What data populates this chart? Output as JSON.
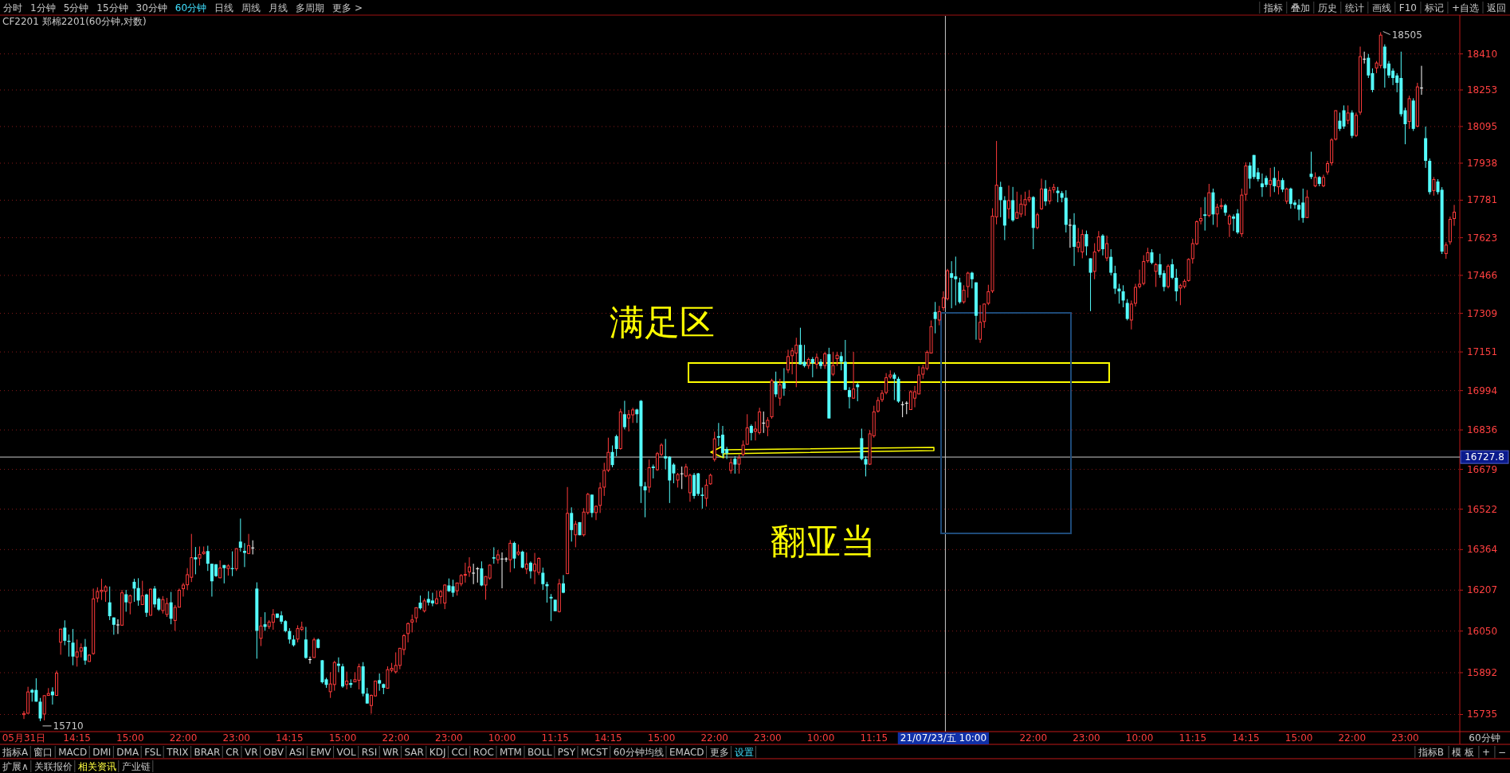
{
  "chart_data": {
    "type": "candlestick",
    "title": "CF2201 郑棉2201(60分钟,对数)",
    "log": true,
    "grid": "y",
    "ylim": [
      15674,
      18577
    ],
    "yticks": [
      15735,
      15892,
      16050,
      16207,
      16364,
      16522,
      16679,
      16836,
      16994,
      17151,
      17309,
      17466,
      17623,
      17781,
      17938,
      18095,
      18253,
      18410
    ],
    "ref_lines": [
      {
        "axis": "y",
        "value": 16727.8,
        "label": "16727.8",
        "color": "#c8c8c8"
      },
      {
        "axis": "x",
        "value": "21/07/23/五 10:00",
        "color": "#c8c8c8"
      }
    ],
    "annotations": [
      "满足区",
      "翻亚当",
      "15710",
      "18505",
      "分时",
      "1分钟",
      "5分钟",
      "15分钟",
      "30分钟",
      "60分钟",
      "日线",
      "周线",
      "月线",
      "多周期",
      "更多 >",
      "指标",
      "叠加",
      "历史",
      "统计",
      "画线",
      "F10",
      "标记",
      "+自选",
      "返回",
      "指标A",
      "窗口",
      "MACD",
      "DMI",
      "DMA",
      "FSL",
      "TRIX",
      "BRAR",
      "CR",
      "VR",
      "OBV",
      "ASI",
      "EMV",
      "VOL",
      "RSI",
      "WR",
      "SAR",
      "KDJ",
      "CCI",
      "ROC",
      "MTM",
      "BOLL",
      "PSY",
      "MCST",
      "60分钟均线",
      "EMACD",
      "更多",
      "设置",
      "指标B",
      "模 板",
      "+",
      "−",
      "扩展∧",
      "关联报价",
      "相关资讯",
      "产业链",
      "60分钟"
    ],
    "categories": [
      "05月31日",
      null,
      null,
      null,
      null,
      null,
      null,
      null,
      null,
      null,
      null,
      null,
      null,
      "14:15",
      null,
      null,
      null,
      null,
      null,
      null,
      null,
      null,
      null,
      null,
      null,
      null,
      "15:00",
      null,
      null,
      null,
      null,
      null,
      null,
      null,
      null,
      null,
      null,
      null,
      null,
      "22:00",
      null,
      null,
      null,
      null,
      null,
      null,
      null,
      null,
      null,
      null,
      null,
      null,
      "23:00",
      null,
      null,
      null,
      null,
      null,
      null,
      null,
      null,
      null,
      null,
      null,
      null,
      "14:15",
      null,
      null,
      null,
      null,
      null,
      null,
      null,
      null,
      null,
      null,
      null,
      null,
      "15:00",
      null,
      null,
      null,
      null,
      null,
      null,
      null,
      null,
      null,
      null,
      null,
      null,
      "22:00",
      null,
      null,
      null,
      null,
      null,
      null,
      null,
      null,
      null,
      null,
      null,
      null,
      "23:00",
      null,
      null,
      null,
      null,
      null,
      null,
      null,
      null,
      null,
      null,
      null,
      null,
      "10:00",
      null,
      null,
      null,
      null,
      null,
      null,
      null,
      null,
      null,
      null,
      null,
      null,
      "11:15",
      null,
      null,
      null,
      null,
      null,
      null,
      null,
      null,
      null,
      null,
      null,
      null,
      "14:15",
      null,
      null,
      null,
      null,
      null,
      null,
      null,
      null,
      null,
      null,
      null,
      null,
      "15:00",
      null,
      null,
      null,
      null,
      null,
      null,
      null,
      null,
      null,
      null,
      null,
      null,
      "22:00",
      null,
      null,
      null,
      null,
      null,
      null,
      null,
      null,
      null,
      null,
      null,
      null,
      "23:00",
      null,
      null,
      null,
      null,
      null,
      null,
      null,
      null,
      null,
      null,
      null,
      null,
      "10:00",
      null,
      null,
      null,
      null,
      null,
      null,
      null,
      null,
      null,
      null,
      null,
      null,
      "11:15",
      null,
      null,
      null,
      null,
      null,
      null,
      null,
      null,
      null,
      null,
      null,
      null,
      null,
      null,
      null,
      null,
      "21/07/23/五 10:00",
      null,
      null,
      null,
      null,
      null,
      null,
      null,
      null,
      null,
      null,
      null,
      null,
      null,
      null,
      null,
      null,
      null,
      null,
      null,
      null,
      null,
      "22:00",
      null,
      null,
      null,
      null,
      null,
      null,
      null,
      null,
      null,
      null,
      null,
      null,
      "23:00",
      null,
      null,
      null,
      null,
      null,
      null,
      null,
      null,
      null,
      null,
      null,
      null,
      "10:00",
      null,
      null,
      null,
      null,
      null,
      null,
      null,
      null,
      null,
      null,
      null,
      null,
      "11:15",
      null,
      null,
      null,
      null,
      null,
      null,
      null,
      null,
      null,
      null,
      null,
      null,
      "14:15",
      null,
      null,
      null,
      null,
      null,
      null,
      null,
      null,
      null,
      null,
      null,
      null,
      "15:00",
      null,
      null,
      null,
      null,
      null,
      null,
      null,
      null,
      null,
      null,
      null,
      null,
      "22:00",
      null,
      null,
      null,
      null,
      null,
      null,
      null,
      null,
      null,
      null,
      null,
      null,
      "23:00",
      null,
      null,
      null,
      null,
      null,
      null,
      null,
      null,
      null,
      null,
      null,
      null
    ],
    "ohlc": [
      [
        15733,
        15748,
        15718,
        15740
      ],
      [
        15738,
        15839,
        15738,
        15821
      ],
      [
        15827,
        15831,
        15783,
        15817
      ],
      [
        15827,
        15871,
        15783,
        15783
      ],
      [
        15783,
        15797,
        15710,
        15720
      ],
      [
        15735,
        15807,
        15713,
        15807
      ],
      [
        15805,
        15834,
        15805,
        15815
      ],
      [
        15821,
        15837,
        15772,
        15807
      ],
      [
        15805,
        15900,
        15805,
        15892
      ],
      [
        16006,
        16059,
        15960,
        16059
      ],
      [
        16063,
        16091,
        15996,
        16013
      ],
      [
        16013,
        16037,
        15953,
        16009
      ],
      [
        16006,
        16058,
        15920,
        15953
      ],
      [
        15950,
        16018,
        15915,
        15972
      ],
      [
        15972,
        16003,
        15950,
        15988
      ],
      [
        15990,
        16020,
        15922,
        15938
      ],
      [
        15933,
        15962,
        15933,
        15960
      ],
      [
        15963,
        16213,
        15960,
        16175
      ],
      [
        16175,
        16218,
        16160,
        16203
      ],
      [
        16200,
        16251,
        16169,
        16208
      ],
      [
        16201,
        16226,
        16162,
        16221
      ],
      [
        16160,
        16221,
        16092,
        16107
      ],
      [
        16102,
        16102,
        16036,
        16074
      ],
      [
        16075,
        16095,
        16039,
        16075
      ],
      [
        16071,
        16208,
        16071,
        16198
      ],
      [
        16191,
        16208,
        16124,
        16160
      ],
      [
        16157,
        16190,
        16114,
        16187
      ],
      [
        16239,
        16251,
        16162,
        16213
      ],
      [
        16215,
        16253,
        16147,
        16167
      ],
      [
        16150,
        16243,
        16150,
        16187
      ],
      [
        16190,
        16193,
        16104,
        16120
      ],
      [
        16109,
        16213,
        16109,
        16212
      ],
      [
        16213,
        16223,
        16140,
        16152
      ],
      [
        16174,
        16179,
        16127,
        16132
      ],
      [
        16127,
        16184,
        16117,
        16172
      ],
      [
        16112,
        16177,
        16104,
        16157
      ],
      [
        16160,
        16200,
        16076,
        16097
      ],
      [
        16089,
        16150,
        16051,
        16142
      ],
      [
        16140,
        16213,
        16140,
        16208
      ],
      [
        16211,
        16235,
        16182,
        16228
      ],
      [
        16226,
        16292,
        16208,
        16268
      ],
      [
        16255,
        16425,
        16238,
        16334
      ],
      [
        16334,
        16374,
        16268,
        16326
      ],
      [
        16329,
        16376,
        16302,
        16346
      ],
      [
        16347,
        16376,
        16344,
        16356
      ],
      [
        16358,
        16379,
        16281,
        16309
      ],
      [
        16309,
        16309,
        16182,
        16241
      ],
      [
        16307,
        16307,
        16258,
        16261
      ],
      [
        16253,
        16322,
        16253,
        16294
      ],
      [
        16304,
        16304,
        16233,
        16292
      ],
      [
        16289,
        16307,
        16263,
        16302
      ],
      [
        16292,
        16357,
        16261,
        16288
      ],
      [
        16288,
        16369,
        16281,
        16369
      ],
      [
        16395,
        16485,
        16356,
        16371
      ],
      [
        16359,
        16389,
        16296,
        16351
      ],
      [
        16347,
        16425,
        16347,
        16381
      ],
      [
        16372,
        16400,
        16345,
        16372
      ],
      [
        16213,
        16237,
        15945,
        16051
      ],
      [
        16021,
        16104,
        15993,
        16071
      ],
      [
        16076,
        16122,
        16051,
        16066
      ],
      [
        16066,
        16092,
        16058,
        16086
      ],
      [
        16082,
        16134,
        16055,
        16115
      ],
      [
        16117,
        16117,
        16099,
        16101
      ],
      [
        16110,
        16126,
        16077,
        16086
      ],
      [
        16088,
        16092,
        16045,
        16050
      ],
      [
        16050,
        16061,
        16002,
        16018
      ],
      [
        16018,
        16034,
        15991,
        15996
      ],
      [
        16018,
        16072,
        16007,
        16061
      ],
      [
        16055,
        16086,
        16050,
        16066
      ],
      [
        16018,
        16066,
        15945,
        15948
      ],
      [
        15943,
        15953,
        15926,
        15943
      ],
      [
        15948,
        16025,
        15948,
        16018
      ],
      [
        16018,
        16022,
        15984,
        15986
      ],
      [
        15939,
        15940,
        15851,
        15856
      ],
      [
        15867,
        15873,
        15835,
        15846
      ],
      [
        15819,
        15894,
        15797,
        15851
      ],
      [
        15846,
        15937,
        15824,
        15932
      ],
      [
        15926,
        15950,
        15894,
        15918
      ],
      [
        15916,
        15926,
        15835,
        15840
      ],
      [
        15846,
        15896,
        15829,
        15862
      ],
      [
        15853,
        15867,
        15835,
        15846
      ],
      [
        15856,
        15894,
        15856,
        15867
      ],
      [
        15862,
        15926,
        15829,
        15916
      ],
      [
        15916,
        15932,
        15803,
        15813
      ],
      [
        15813,
        15835,
        15776,
        15776
      ],
      [
        15767,
        15810,
        15738,
        15808
      ],
      [
        15803,
        15862,
        15803,
        15862
      ],
      [
        15864,
        15889,
        15824,
        15851
      ],
      [
        15849,
        15851,
        15811,
        15835
      ],
      [
        15832,
        15916,
        15832,
        15905
      ],
      [
        15900,
        15929,
        15894,
        15910
      ],
      [
        15894,
        15969,
        15889,
        15921
      ],
      [
        15918,
        15986,
        15905,
        15986
      ],
      [
        15978,
        16039,
        15959,
        16034
      ],
      [
        16039,
        16083,
        16007,
        16080
      ],
      [
        16083,
        16113,
        16045,
        16094
      ],
      [
        16099,
        16141,
        16083,
        16141
      ],
      [
        16159,
        16186,
        16132,
        16137
      ],
      [
        16126,
        16175,
        16121,
        16167
      ],
      [
        16173,
        16203,
        16148,
        16159
      ],
      [
        16167,
        16197,
        16145,
        16156
      ],
      [
        16154,
        16206,
        16152,
        16175
      ],
      [
        16181,
        16208,
        16154,
        16203
      ],
      [
        16156,
        16230,
        16134,
        16228
      ],
      [
        16225,
        16252,
        16200,
        16203
      ],
      [
        16222,
        16247,
        16181,
        16197
      ],
      [
        16203,
        16236,
        16186,
        16236
      ],
      [
        16230,
        16269,
        16222,
        16265
      ],
      [
        16263,
        16313,
        16236,
        16269
      ],
      [
        16276,
        16334,
        16258,
        16298
      ],
      [
        16274,
        16309,
        16230,
        16274
      ],
      [
        16291,
        16296,
        16236,
        16291
      ],
      [
        16291,
        16318,
        16222,
        16225
      ],
      [
        16225,
        16261,
        16170,
        16261
      ],
      [
        16252,
        16307,
        16247,
        16305
      ],
      [
        16334,
        16373,
        16309,
        16329
      ],
      [
        16323,
        16362,
        16309,
        16345
      ],
      [
        16329,
        16353,
        16214,
        16329
      ],
      [
        16329,
        16334,
        16316,
        16329
      ],
      [
        16323,
        16401,
        16276,
        16390
      ],
      [
        16390,
        16395,
        16291,
        16329
      ],
      [
        16345,
        16384,
        16340,
        16356
      ],
      [
        16356,
        16360,
        16291,
        16294
      ],
      [
        16287,
        16353,
        16269,
        16309
      ],
      [
        16313,
        16318,
        16252,
        16280
      ],
      [
        16280,
        16351,
        16230,
        16309
      ],
      [
        16274,
        16334,
        16265,
        16331
      ],
      [
        16274,
        16294,
        16208,
        16230
      ],
      [
        16230,
        16239,
        16159,
        16222
      ],
      [
        16181,
        16192,
        16088,
        16175
      ],
      [
        16170,
        16170,
        16126,
        16126
      ],
      [
        16123,
        16250,
        16121,
        16233
      ],
      [
        16233,
        16265,
        16195,
        16197
      ],
      [
        16269,
        16609,
        16269,
        16507
      ],
      [
        16507,
        16529,
        16395,
        16440
      ],
      [
        16420,
        16476,
        16373,
        16465
      ],
      [
        16471,
        16471,
        16420,
        16420
      ],
      [
        16420,
        16526,
        16415,
        16512
      ],
      [
        16507,
        16586,
        16501,
        16582
      ],
      [
        16579,
        16579,
        16490,
        16507
      ],
      [
        16507,
        16535,
        16479,
        16535
      ],
      [
        16535,
        16627,
        16507,
        16607
      ],
      [
        16607,
        16705,
        16574,
        16676
      ],
      [
        16674,
        16805,
        16668,
        16748
      ],
      [
        16748,
        16774,
        16687,
        16696
      ],
      [
        16811,
        16817,
        16731,
        16760
      ],
      [
        16760,
        16921,
        16757,
        16910
      ],
      [
        16899,
        16953,
        16838,
        16847
      ],
      [
        16882,
        16916,
        16830,
        16899
      ],
      [
        16895,
        16925,
        16864,
        16918
      ],
      [
        16918,
        16921,
        16864,
        16899
      ],
      [
        16953,
        16956,
        16546,
        16612
      ],
      [
        16612,
        16629,
        16490,
        16596
      ],
      [
        16607,
        16718,
        16587,
        16687
      ],
      [
        16690,
        16698,
        16643,
        16684
      ],
      [
        16676,
        16748,
        16673,
        16743
      ],
      [
        16737,
        16783,
        16731,
        16777
      ],
      [
        16731,
        16800,
        16679,
        16722
      ],
      [
        16729,
        16731,
        16546,
        16635
      ],
      [
        16698,
        16704,
        16624,
        16663
      ],
      [
        16635,
        16665,
        16607,
        16660
      ],
      [
        16663,
        16690,
        16601,
        16663
      ],
      [
        16651,
        16701,
        16648,
        16690
      ],
      [
        16585,
        16662,
        16551,
        16657
      ],
      [
        16657,
        16665,
        16563,
        16574
      ],
      [
        16663,
        16665,
        16574,
        16582
      ],
      [
        16579,
        16607,
        16524,
        16574
      ],
      [
        16563,
        16640,
        16532,
        16618
      ],
      [
        16620,
        16662,
        16618,
        16657
      ],
      [
        16717,
        16829,
        16710,
        16802
      ],
      [
        16811,
        16864,
        16771,
        16805
      ],
      [
        16817,
        16852,
        16726,
        16743
      ],
      [
        16760,
        16768,
        16720,
        16743
      ],
      [
        16673,
        16723,
        16662,
        16707
      ],
      [
        16721,
        16731,
        16662,
        16698
      ],
      [
        16698,
        16737,
        16662,
        16726
      ],
      [
        16737,
        16794,
        16731,
        16777
      ],
      [
        16777,
        16899,
        16777,
        16846
      ],
      [
        16852,
        16858,
        16794,
        16824
      ],
      [
        16829,
        16870,
        16794,
        16841
      ],
      [
        16824,
        16925,
        16818,
        16910
      ],
      [
        16865,
        16910,
        16824,
        16865
      ],
      [
        16847,
        16887,
        16811,
        16876
      ],
      [
        16887,
        17042,
        16881,
        17036
      ],
      [
        17030,
        17071,
        16968,
        16979
      ],
      [
        16962,
        17042,
        16933,
        17019
      ],
      [
        17025,
        17085,
        16973,
        17002
      ],
      [
        17076,
        17160,
        17065,
        17134
      ],
      [
        17134,
        17168,
        17060,
        17157
      ],
      [
        17145,
        17209,
        17008,
        17180
      ],
      [
        17180,
        17250,
        17100,
        17100
      ],
      [
        17111,
        17180,
        17088,
        17094
      ],
      [
        17094,
        17128,
        17082,
        17122
      ],
      [
        17122,
        17130,
        17048,
        17105
      ],
      [
        17100,
        17145,
        17082,
        17130
      ],
      [
        17111,
        17122,
        17082,
        17094
      ],
      [
        17094,
        17151,
        17082,
        17145
      ],
      [
        17142,
        17168,
        16882,
        16882
      ],
      [
        17059,
        17151,
        17053,
        17097
      ],
      [
        17122,
        17151,
        17094,
        17139
      ],
      [
        17134,
        17151,
        17076,
        17111
      ],
      [
        17111,
        17200,
        16997,
        16997
      ],
      [
        16996,
        17008,
        16922,
        16968
      ],
      [
        16962,
        17151,
        16962,
        17002
      ],
      [
        17019,
        17025,
        16951,
        17008
      ],
      [
        16803,
        16841,
        16715,
        16720
      ],
      [
        16720,
        16731,
        16651,
        16698
      ],
      [
        16698,
        16835,
        16696,
        16822
      ],
      [
        16811,
        16933,
        16805,
        16910
      ],
      [
        16910,
        16968,
        16905,
        16956
      ],
      [
        16956,
        16996,
        16948,
        16985
      ],
      [
        16985,
        17065,
        16979,
        17048
      ],
      [
        17048,
        17076,
        17042,
        17059
      ],
      [
        17059,
        17067,
        16956,
        17042
      ],
      [
        17042,
        17050,
        16945,
        16950
      ],
      [
        16939,
        16950,
        16887,
        16939
      ],
      [
        16945,
        16951,
        16899,
        16945
      ],
      [
        16916,
        16996,
        16916,
        16991
      ],
      [
        16962,
        17013,
        16927,
        16991
      ],
      [
        16979,
        17093,
        16979,
        17059
      ],
      [
        17059,
        17099,
        17042,
        17088
      ],
      [
        17082,
        17157,
        17076,
        17151
      ],
      [
        17145,
        17280,
        17145,
        17256
      ],
      [
        17315,
        17356,
        17227,
        17286
      ],
      [
        17280,
        17340,
        17260,
        17318
      ],
      [
        17331,
        17400,
        17320,
        17375
      ],
      [
        17368,
        17493,
        17362,
        17487
      ],
      [
        17475,
        17525,
        17330,
        17456
      ],
      [
        17462,
        17544,
        17342,
        17450
      ],
      [
        17437,
        17456,
        17349,
        17355
      ],
      [
        17355,
        17425,
        17349,
        17406
      ],
      [
        17418,
        17481,
        17374,
        17477
      ],
      [
        17477,
        17481,
        17412,
        17450
      ],
      [
        17437,
        17437,
        17201,
        17299
      ],
      [
        17201,
        17343,
        17188,
        17274
      ],
      [
        17274,
        17349,
        17249,
        17349
      ],
      [
        17349,
        17427,
        17343,
        17400
      ],
      [
        17400,
        17747,
        17393,
        17715
      ],
      [
        17709,
        18033,
        17679,
        17846
      ],
      [
        17837,
        17859,
        17709,
        17781
      ],
      [
        17781,
        17798,
        17613,
        17674
      ],
      [
        17743,
        17843,
        17703,
        17781
      ],
      [
        17781,
        17837,
        17690,
        17696
      ],
      [
        17703,
        17817,
        17703,
        17731
      ],
      [
        17721,
        17804,
        17709,
        17766
      ],
      [
        17759,
        17817,
        17715,
        17785
      ],
      [
        17781,
        17824,
        17772,
        17794
      ],
      [
        17794,
        17798,
        17575,
        17664
      ],
      [
        17664,
        17728,
        17658,
        17721
      ],
      [
        17743,
        17872,
        17740,
        17830
      ],
      [
        17830,
        17866,
        17757,
        17776
      ],
      [
        17776,
        17837,
        17764,
        17824
      ],
      [
        17824,
        17850,
        17811,
        17837
      ],
      [
        17821,
        17837,
        17772,
        17811
      ],
      [
        17811,
        17820,
        17772,
        17791
      ],
      [
        17791,
        17823,
        17645,
        17677
      ],
      [
        17677,
        17702,
        17581,
        17677
      ],
      [
        17677,
        17726,
        17505,
        17585
      ],
      [
        17581,
        17664,
        17562,
        17606
      ],
      [
        17562,
        17657,
        17537,
        17638
      ],
      [
        17638,
        17653,
        17549,
        17587
      ],
      [
        17537,
        17537,
        17318,
        17477
      ],
      [
        17481,
        17600,
        17450,
        17565
      ],
      [
        17568,
        17651,
        17562,
        17628
      ],
      [
        17632,
        17638,
        17549,
        17575
      ],
      [
        17537,
        17632,
        17525,
        17600
      ],
      [
        17543,
        17575,
        17466,
        17477
      ],
      [
        17475,
        17506,
        17389,
        17411
      ],
      [
        17411,
        17431,
        17349,
        17400
      ],
      [
        17400,
        17425,
        17334,
        17362
      ],
      [
        17352,
        17368,
        17280,
        17286
      ],
      [
        17280,
        17362,
        17243,
        17349
      ],
      [
        17349,
        17431,
        17337,
        17418
      ],
      [
        17418,
        17490,
        17412,
        17431
      ],
      [
        17431,
        17550,
        17425,
        17525
      ],
      [
        17525,
        17581,
        17518,
        17562
      ],
      [
        17562,
        17575,
        17512,
        17518
      ],
      [
        17481,
        17518,
        17418,
        17512
      ],
      [
        17512,
        17556,
        17456,
        17468
      ],
      [
        17475,
        17487,
        17400,
        17418
      ],
      [
        17418,
        17512,
        17412,
        17506
      ],
      [
        17512,
        17534,
        17450,
        17456
      ],
      [
        17456,
        17493,
        17359,
        17400
      ],
      [
        17412,
        17431,
        17343,
        17425
      ],
      [
        17418,
        17450,
        17412,
        17443
      ],
      [
        17443,
        17537,
        17440,
        17534
      ],
      [
        17534,
        17619,
        17515,
        17600
      ],
      [
        17596,
        17696,
        17592,
        17692
      ],
      [
        17692,
        17751,
        17679,
        17705
      ],
      [
        17721,
        17794,
        17653,
        17715
      ],
      [
        17715,
        17850,
        17709,
        17814
      ],
      [
        17814,
        17830,
        17677,
        17721
      ],
      [
        17721,
        17766,
        17667,
        17753
      ],
      [
        17753,
        17788,
        17743,
        17760
      ],
      [
        17760,
        17766,
        17715,
        17728
      ],
      [
        17679,
        17721,
        17626,
        17715
      ],
      [
        17712,
        17721,
        17651,
        17703
      ],
      [
        17725,
        17743,
        17638,
        17645
      ],
      [
        17638,
        17830,
        17626,
        17804
      ],
      [
        17804,
        17942,
        17778,
        17928
      ],
      [
        17928,
        17942,
        17830,
        17872
      ],
      [
        17973,
        17973,
        17870,
        17879
      ],
      [
        17899,
        17918,
        17860,
        17870
      ],
      [
        17852,
        17894,
        17795,
        17836
      ],
      [
        17875,
        17885,
        17836,
        17846
      ],
      [
        17846,
        17918,
        17795,
        17866
      ],
      [
        17875,
        17922,
        17815,
        17840
      ],
      [
        17836,
        17905,
        17805,
        17866
      ],
      [
        17866,
        17875,
        17815,
        17826
      ],
      [
        17775,
        17834,
        17765,
        17830
      ],
      [
        17830,
        17834,
        17745,
        17765
      ],
      [
        17771,
        17781,
        17745,
        17761
      ],
      [
        17761,
        17785,
        17696,
        17741
      ],
      [
        17771,
        17830,
        17686,
        17706
      ],
      [
        17706,
        17824,
        17706,
        17795
      ],
      [
        17893,
        17987,
        17870,
        17879
      ],
      [
        17840,
        17899,
        17836,
        17879
      ],
      [
        17879,
        17883,
        17840,
        17850
      ],
      [
        17840,
        17889,
        17836,
        17879
      ],
      [
        17899,
        17948,
        17889,
        17938
      ],
      [
        17938,
        18045,
        17928,
        18039
      ],
      [
        18039,
        18165,
        18035,
        18165
      ],
      [
        18120,
        18155,
        18076,
        18085
      ],
      [
        18165,
        18186,
        18085,
        18095
      ],
      [
        18120,
        18186,
        18105,
        18155
      ],
      [
        18155,
        18165,
        18045,
        18055
      ],
      [
        18055,
        18155,
        18050,
        18145
      ],
      [
        18155,
        18442,
        18145,
        18400
      ],
      [
        18389,
        18420,
        18368,
        18389
      ],
      [
        18393,
        18410,
        18305,
        18316
      ],
      [
        18326,
        18347,
        18243,
        18253
      ],
      [
        18347,
        18379,
        18326,
        18372
      ],
      [
        18358,
        18505,
        18347,
        18494
      ],
      [
        18442,
        18452,
        18263,
        18347
      ],
      [
        18368,
        18379,
        18305,
        18316
      ],
      [
        18337,
        18347,
        18274,
        18305
      ],
      [
        18316,
        18326,
        18243,
        18284
      ],
      [
        18305,
        18420,
        18138,
        18148
      ],
      [
        18165,
        18176,
        18019,
        18105
      ],
      [
        18115,
        18228,
        18085,
        18217
      ],
      [
        18207,
        18217,
        18076,
        18085
      ],
      [
        18095,
        18284,
        18091,
        18268
      ],
      [
        18263,
        18358,
        18232,
        18263
      ],
      [
        18045,
        18095,
        17918,
        17948
      ],
      [
        17948,
        17958,
        17805,
        17815
      ],
      [
        17820,
        17879,
        17800,
        17870
      ],
      [
        17860,
        17870,
        17805,
        17815
      ],
      [
        17825,
        17836,
        17555,
        17565
      ],
      [
        17555,
        17604,
        17535,
        17594
      ],
      [
        17604,
        17712,
        17594,
        17702
      ],
      [
        17702,
        17761,
        17673,
        17732
      ]
    ]
  }
}
